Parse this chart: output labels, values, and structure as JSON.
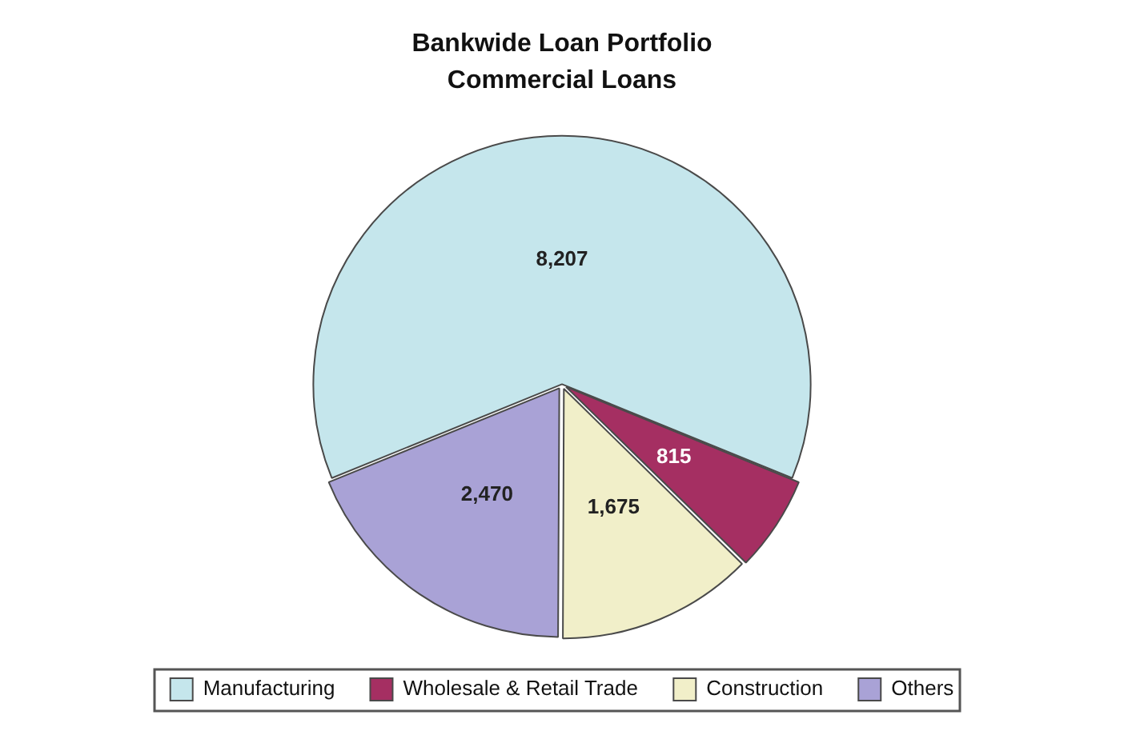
{
  "chart_data": {
    "type": "pie",
    "title": "Bankwide Loan Portfolio",
    "subtitle": "Commercial Loans",
    "categories": [
      "Manufacturing",
      "Wholesale & Retail Trade",
      "Construction",
      "Others"
    ],
    "values": [
      8207,
      815,
      1675,
      2470
    ],
    "colors": [
      "#c5e6ec",
      "#a52f62",
      "#f1efc9",
      "#a9a2d6"
    ],
    "value_labels": [
      "8,207",
      "815",
      "1,675",
      "2,470"
    ],
    "legend": "bottom"
  }
}
